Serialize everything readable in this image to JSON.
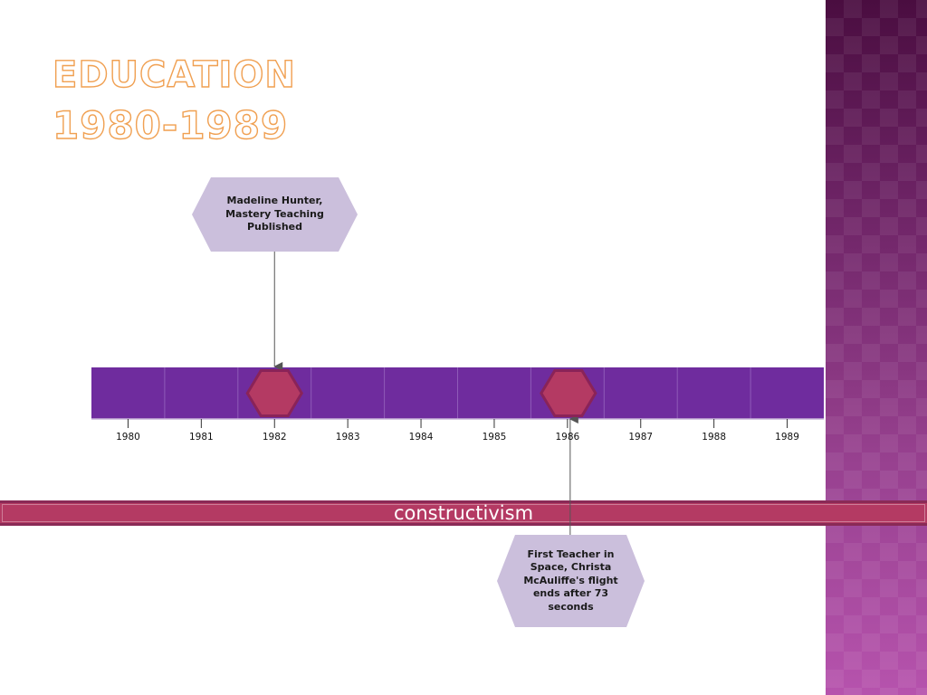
{
  "title": {
    "line1": "EDUCATION",
    "line2": "1980-1989"
  },
  "timeline": {
    "years": [
      "1980",
      "1981",
      "1982",
      "1983",
      "1984",
      "1985",
      "1986",
      "1987",
      "1988",
      "1989"
    ],
    "bar_color": "#6f2c9e",
    "marker_color": "#b43a63",
    "events": [
      {
        "year": "1982",
        "label": "Madeline Hunter,\nMastery Teaching\nPublished",
        "position": "above"
      },
      {
        "year": "1986",
        "label": "First Teacher in\nSpace, Christa\nMcAuliffe's flight\nends after 73\nseconds",
        "position": "below"
      }
    ]
  },
  "band": {
    "label": "constructivism",
    "color": "#b43a63"
  },
  "callout_color": "#cbbfdc",
  "side_panel_color": "#7a2a72"
}
